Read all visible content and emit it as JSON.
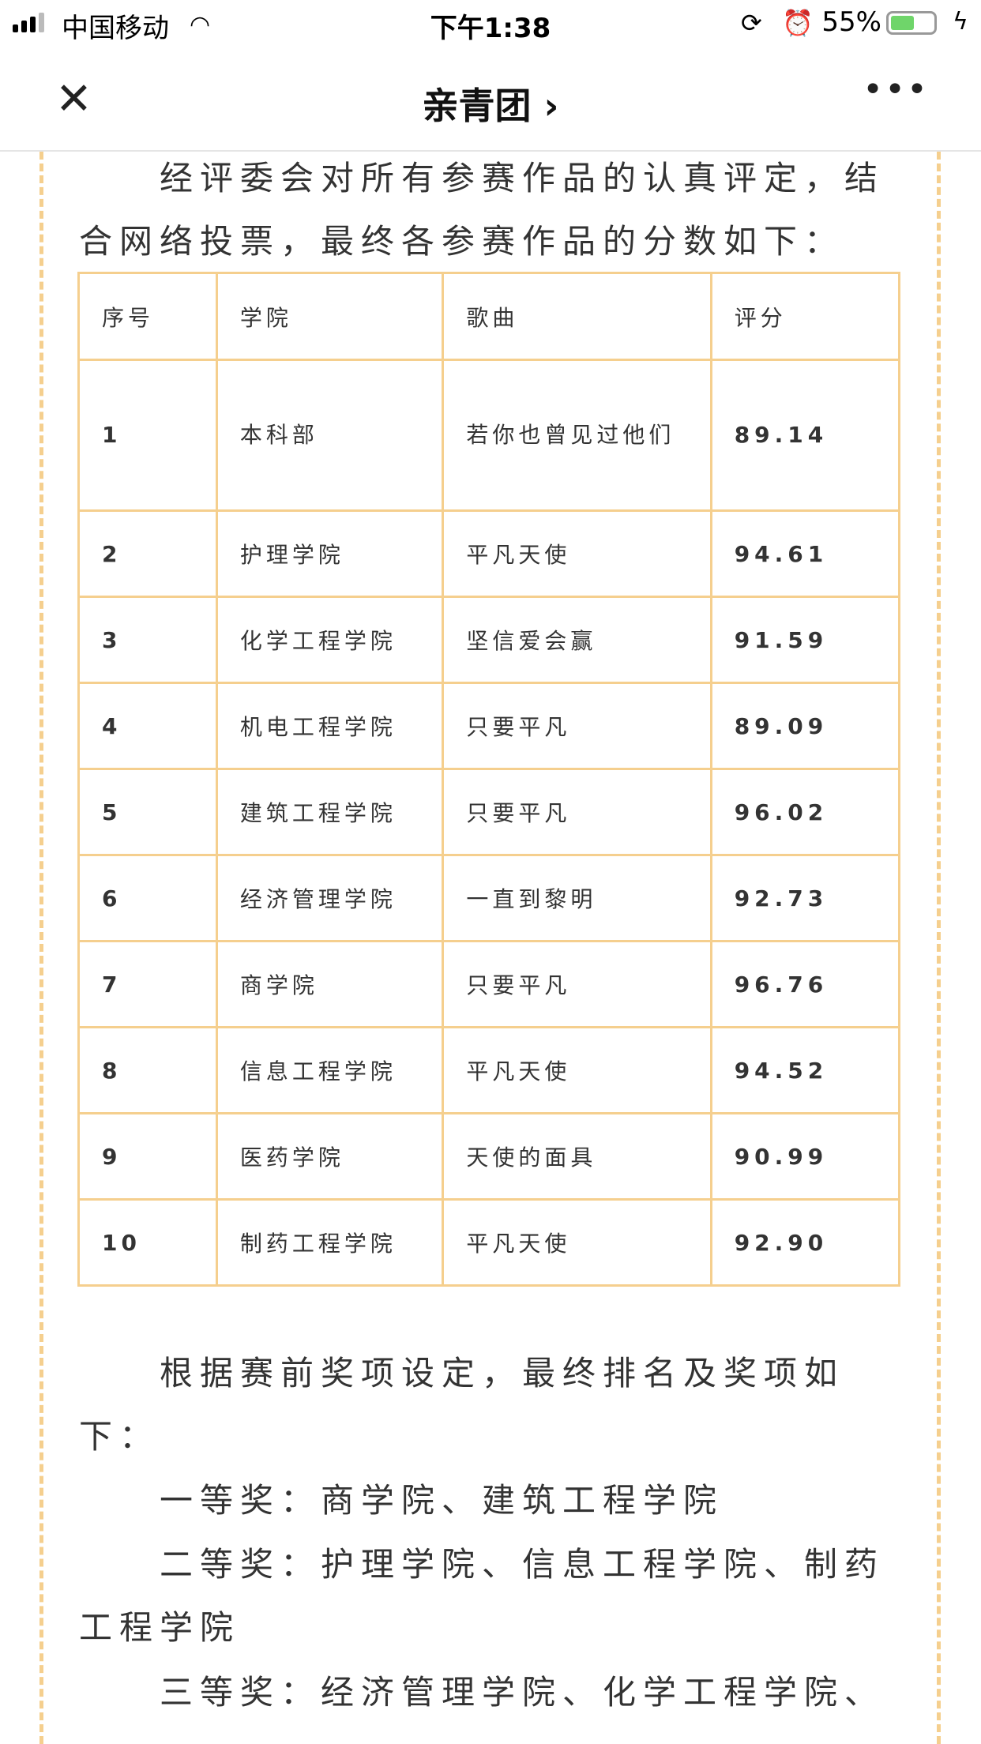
{
  "status_bar": {
    "carrier": "中国移动",
    "time": "下午1:38",
    "battery_percent": "55%",
    "battery_level": 0.55,
    "icons": [
      "signal-icon",
      "wifi-icon",
      "rotation-lock-icon",
      "alarm-icon",
      "battery-icon",
      "charging-icon"
    ]
  },
  "nav": {
    "close_icon": "✕",
    "title": "亲青团 ›",
    "more_icon": "•••"
  },
  "intro": "经评委会对所有参赛作品的认真评定，结合网络投票，最终各参赛作品的分数如下：",
  "table": {
    "headers": [
      "序号",
      "学院",
      "歌曲",
      "评分"
    ],
    "rows": [
      [
        "1",
        "本科部",
        "若你也曾见过他们",
        "89.14"
      ],
      [
        "2",
        "护理学院",
        "平凡天使",
        "94.61"
      ],
      [
        "3",
        "化学工程学院",
        "坚信爱会赢",
        "91.59"
      ],
      [
        "4",
        "机电工程学院",
        "只要平凡",
        "89.09"
      ],
      [
        "5",
        "建筑工程学院",
        "只要平凡",
        "96.02"
      ],
      [
        "6",
        "经济管理学院",
        "一直到黎明",
        "92.73"
      ],
      [
        "7",
        "商学院",
        "只要平凡",
        "96.76"
      ],
      [
        "8",
        "信息工程学院",
        "平凡天使",
        "94.52"
      ],
      [
        "9",
        "医药学院",
        "天使的面具",
        "90.99"
      ],
      [
        "10",
        "制药工程学院",
        "平凡天使",
        "92.90"
      ]
    ],
    "border_color": "#f5cf8e"
  },
  "awards_intro": "根据赛前奖项设定，最终排名及奖项如下：",
  "awards": [
    "一等奖：商学院、建筑工程学院",
    "二等奖：护理学院、信息工程学院、制药工程学院",
    "三等奖：经济管理学院、化学工程学院、"
  ]
}
